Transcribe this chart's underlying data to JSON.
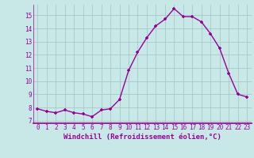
{
  "x": [
    0,
    1,
    2,
    3,
    4,
    5,
    6,
    7,
    8,
    9,
    10,
    11,
    12,
    13,
    14,
    15,
    16,
    17,
    18,
    19,
    20,
    21,
    22,
    23
  ],
  "y": [
    7.9,
    7.7,
    7.6,
    7.8,
    7.6,
    7.5,
    7.3,
    7.8,
    7.9,
    8.6,
    10.8,
    12.2,
    13.3,
    14.2,
    14.7,
    15.5,
    14.9,
    14.9,
    14.5,
    13.6,
    12.5,
    10.6,
    9.0,
    8.8
  ],
  "line_color": "#990099",
  "marker": "+",
  "marker_size": 3,
  "line_width": 1.0,
  "bg_color": "#c8e8e8",
  "grid_color": "#a8c8c8",
  "xlabel": "Windchill (Refroidissement éolien,°C)",
  "xlabel_color": "#990099",
  "tick_color": "#990099",
  "axis_line_color": "#990099",
  "yticks": [
    7,
    8,
    9,
    10,
    11,
    12,
    13,
    14,
    15
  ],
  "ylim": [
    6.8,
    15.8
  ],
  "xlim": [
    -0.5,
    23.5
  ],
  "tick_fontsize": 5.5,
  "xlabel_fontsize": 6.5
}
